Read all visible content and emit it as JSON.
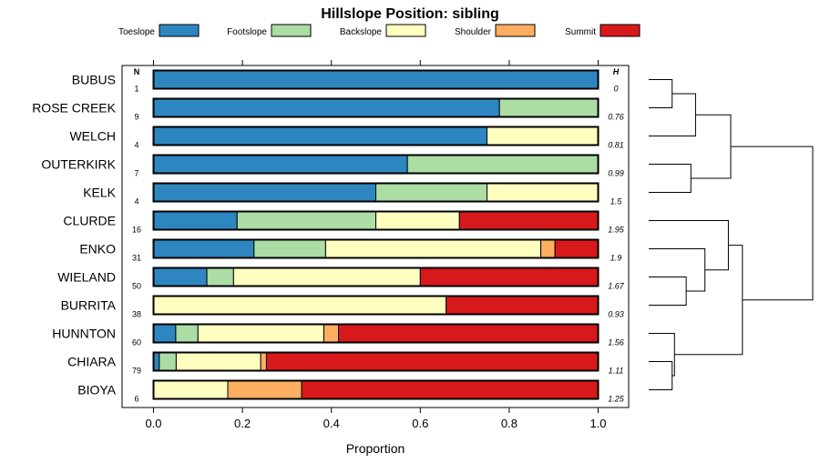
{
  "chart_data": {
    "type": "stacked-horizontal-bar",
    "title": "Hillslope Position: sibling",
    "xlabel": "Proportion",
    "xlim": [
      0,
      1
    ],
    "x_ticks": [
      "0.0",
      "0.2",
      "0.4",
      "0.6",
      "0.8",
      "1.0"
    ],
    "n_header": "N",
    "h_header": "H",
    "legend": [
      {
        "name": "Toeslope",
        "color": "#2e86c1"
      },
      {
        "name": "Footslope",
        "color": "#abdda4"
      },
      {
        "name": "Backslope",
        "color": "#ffffbf"
      },
      {
        "name": "Shoulder",
        "color": "#fdae61"
      },
      {
        "name": "Summit",
        "color": "#d7191c"
      }
    ],
    "rows": [
      {
        "label": "BUBUS",
        "n": "1",
        "h": "0",
        "values": [
          1.0,
          0,
          0,
          0,
          0
        ]
      },
      {
        "label": "ROSE CREEK",
        "n": "9",
        "h": "0.76",
        "values": [
          0.778,
          0.222,
          0,
          0,
          0
        ]
      },
      {
        "label": "WELCH",
        "n": "4",
        "h": "0.81",
        "values": [
          0.75,
          0,
          0.25,
          0,
          0
        ]
      },
      {
        "label": "OUTERKIRK",
        "n": "7",
        "h": "0.99",
        "values": [
          0.571,
          0.429,
          0,
          0,
          0
        ]
      },
      {
        "label": "KELK",
        "n": "4",
        "h": "1.5",
        "values": [
          0.5,
          0.25,
          0.25,
          0,
          0
        ]
      },
      {
        "label": "CLURDE",
        "n": "16",
        "h": "1.95",
        "values": [
          0.188,
          0.312,
          0.188,
          0,
          0.312
        ]
      },
      {
        "label": "ENKO",
        "n": "31",
        "h": "1.9",
        "values": [
          0.226,
          0.161,
          0.484,
          0.032,
          0.097
        ]
      },
      {
        "label": "WIELAND",
        "n": "50",
        "h": "1.67",
        "values": [
          0.12,
          0.06,
          0.42,
          0,
          0.4
        ]
      },
      {
        "label": "BURRITA",
        "n": "38",
        "h": "0.93",
        "values": [
          0,
          0,
          0.658,
          0,
          0.342
        ]
      },
      {
        "label": "HUNNTON",
        "n": "60",
        "h": "1.56",
        "values": [
          0.05,
          0.05,
          0.283,
          0.033,
          0.584
        ]
      },
      {
        "label": "CHIARA",
        "n": "79",
        "h": "1.11",
        "values": [
          0.013,
          0.038,
          0.19,
          0.013,
          0.746
        ]
      },
      {
        "label": "BIOYA",
        "n": "6",
        "h": "1.25",
        "values": [
          0,
          0,
          0.167,
          0.166,
          0.667
        ]
      }
    ],
    "dendrogram": [
      {
        "a": 0,
        "b": 1,
        "height": 0.1
      },
      {
        "a": "m0",
        "b": 2,
        "height": 0.2
      },
      {
        "a": 3,
        "b": 4,
        "height": 0.18
      },
      {
        "a": "m1",
        "b": "m2",
        "height": 0.35
      },
      {
        "a": 7,
        "b": 8,
        "height": 0.16
      },
      {
        "a": 6,
        "b": "m4",
        "height": 0.24
      },
      {
        "a": 5,
        "b": "m5",
        "height": 0.34
      },
      {
        "a": 10,
        "b": 11,
        "height": 0.1
      },
      {
        "a": 9,
        "b": "m7",
        "height": 0.11
      },
      {
        "a": "m6",
        "b": "m8",
        "height": 0.4
      },
      {
        "a": "m3",
        "b": "m9",
        "height": 0.7
      }
    ]
  }
}
